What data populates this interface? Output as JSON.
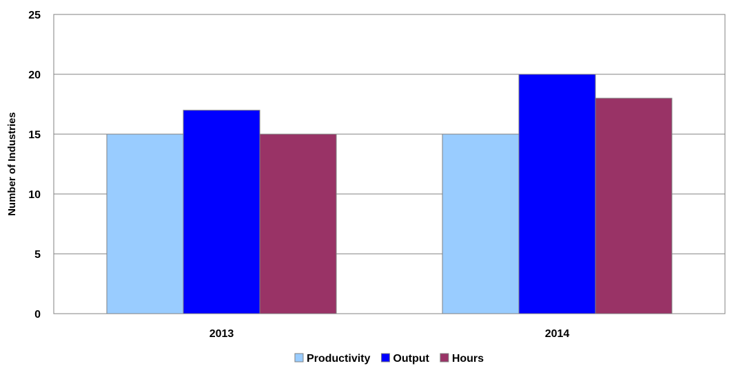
{
  "chart_data": {
    "type": "bar",
    "title": "",
    "xlabel": "",
    "ylabel": "Number of Industries",
    "categories": [
      "2013",
      "2014"
    ],
    "series": [
      {
        "name": "Productivity",
        "values": [
          15,
          15
        ],
        "color": "#99CCFF"
      },
      {
        "name": "Output",
        "values": [
          17,
          20
        ],
        "color": "#0000FF"
      },
      {
        "name": "Hours",
        "values": [
          15,
          18
        ],
        "color": "#993366"
      }
    ],
    "ylim": [
      0,
      25
    ],
    "yticks": [
      0,
      5,
      10,
      15,
      20,
      25
    ],
    "grid": true,
    "legend_position": "bottom"
  }
}
